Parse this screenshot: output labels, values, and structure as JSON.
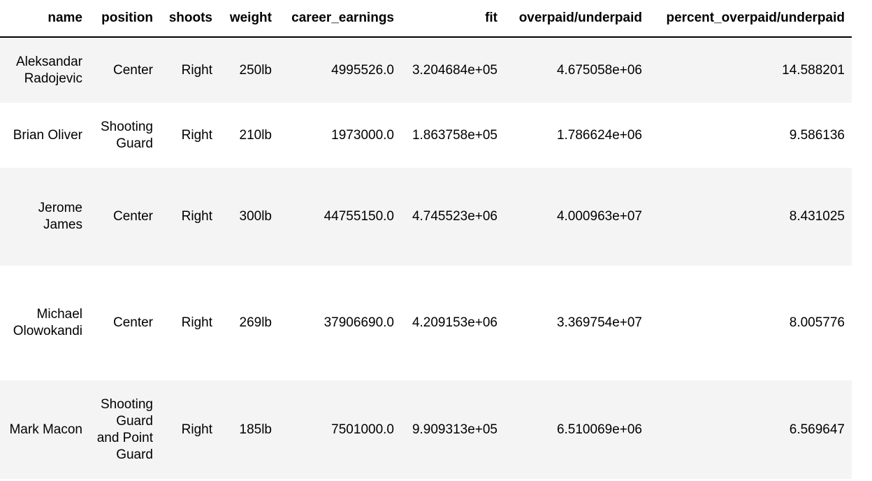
{
  "table": {
    "columns": [
      "name",
      "position",
      "shoots",
      "weight",
      "career_earnings",
      "fit",
      "overpaid/underpaid",
      "percent_overpaid/underpaid"
    ],
    "rows": [
      {
        "name": "Aleksandar Radojevic",
        "position": "Center",
        "shoots": "Right",
        "weight": "250lb",
        "career_earnings": "4995526.0",
        "fit": "3.204684e+05",
        "overpaid_underpaid": "4.675058e+06",
        "percent_overpaid_underpaid": "14.588201"
      },
      {
        "name": "Brian Oliver",
        "position": "Shooting Guard",
        "shoots": "Right",
        "weight": "210lb",
        "career_earnings": "1973000.0",
        "fit": "1.863758e+05",
        "overpaid_underpaid": "1.786624e+06",
        "percent_overpaid_underpaid": "9.586136"
      },
      {
        "name": "Jerome James",
        "position": "Center",
        "shoots": "Right",
        "weight": "300lb",
        "career_earnings": "44755150.0",
        "fit": "4.745523e+06",
        "overpaid_underpaid": "4.000963e+07",
        "percent_overpaid_underpaid": "8.431025"
      },
      {
        "name": "Michael Olowokandi",
        "position": "Center",
        "shoots": "Right",
        "weight": "269lb",
        "career_earnings": "37906690.0",
        "fit": "4.209153e+06",
        "overpaid_underpaid": "3.369754e+07",
        "percent_overpaid_underpaid": "8.005776"
      },
      {
        "name": "Mark Macon",
        "position": "Shooting Guard and Point Guard",
        "shoots": "Right",
        "weight": "185lb",
        "career_earnings": "7501000.0",
        "fit": "9.909313e+05",
        "overpaid_underpaid": "6.510069e+06",
        "percent_overpaid_underpaid": "6.569647"
      }
    ]
  }
}
